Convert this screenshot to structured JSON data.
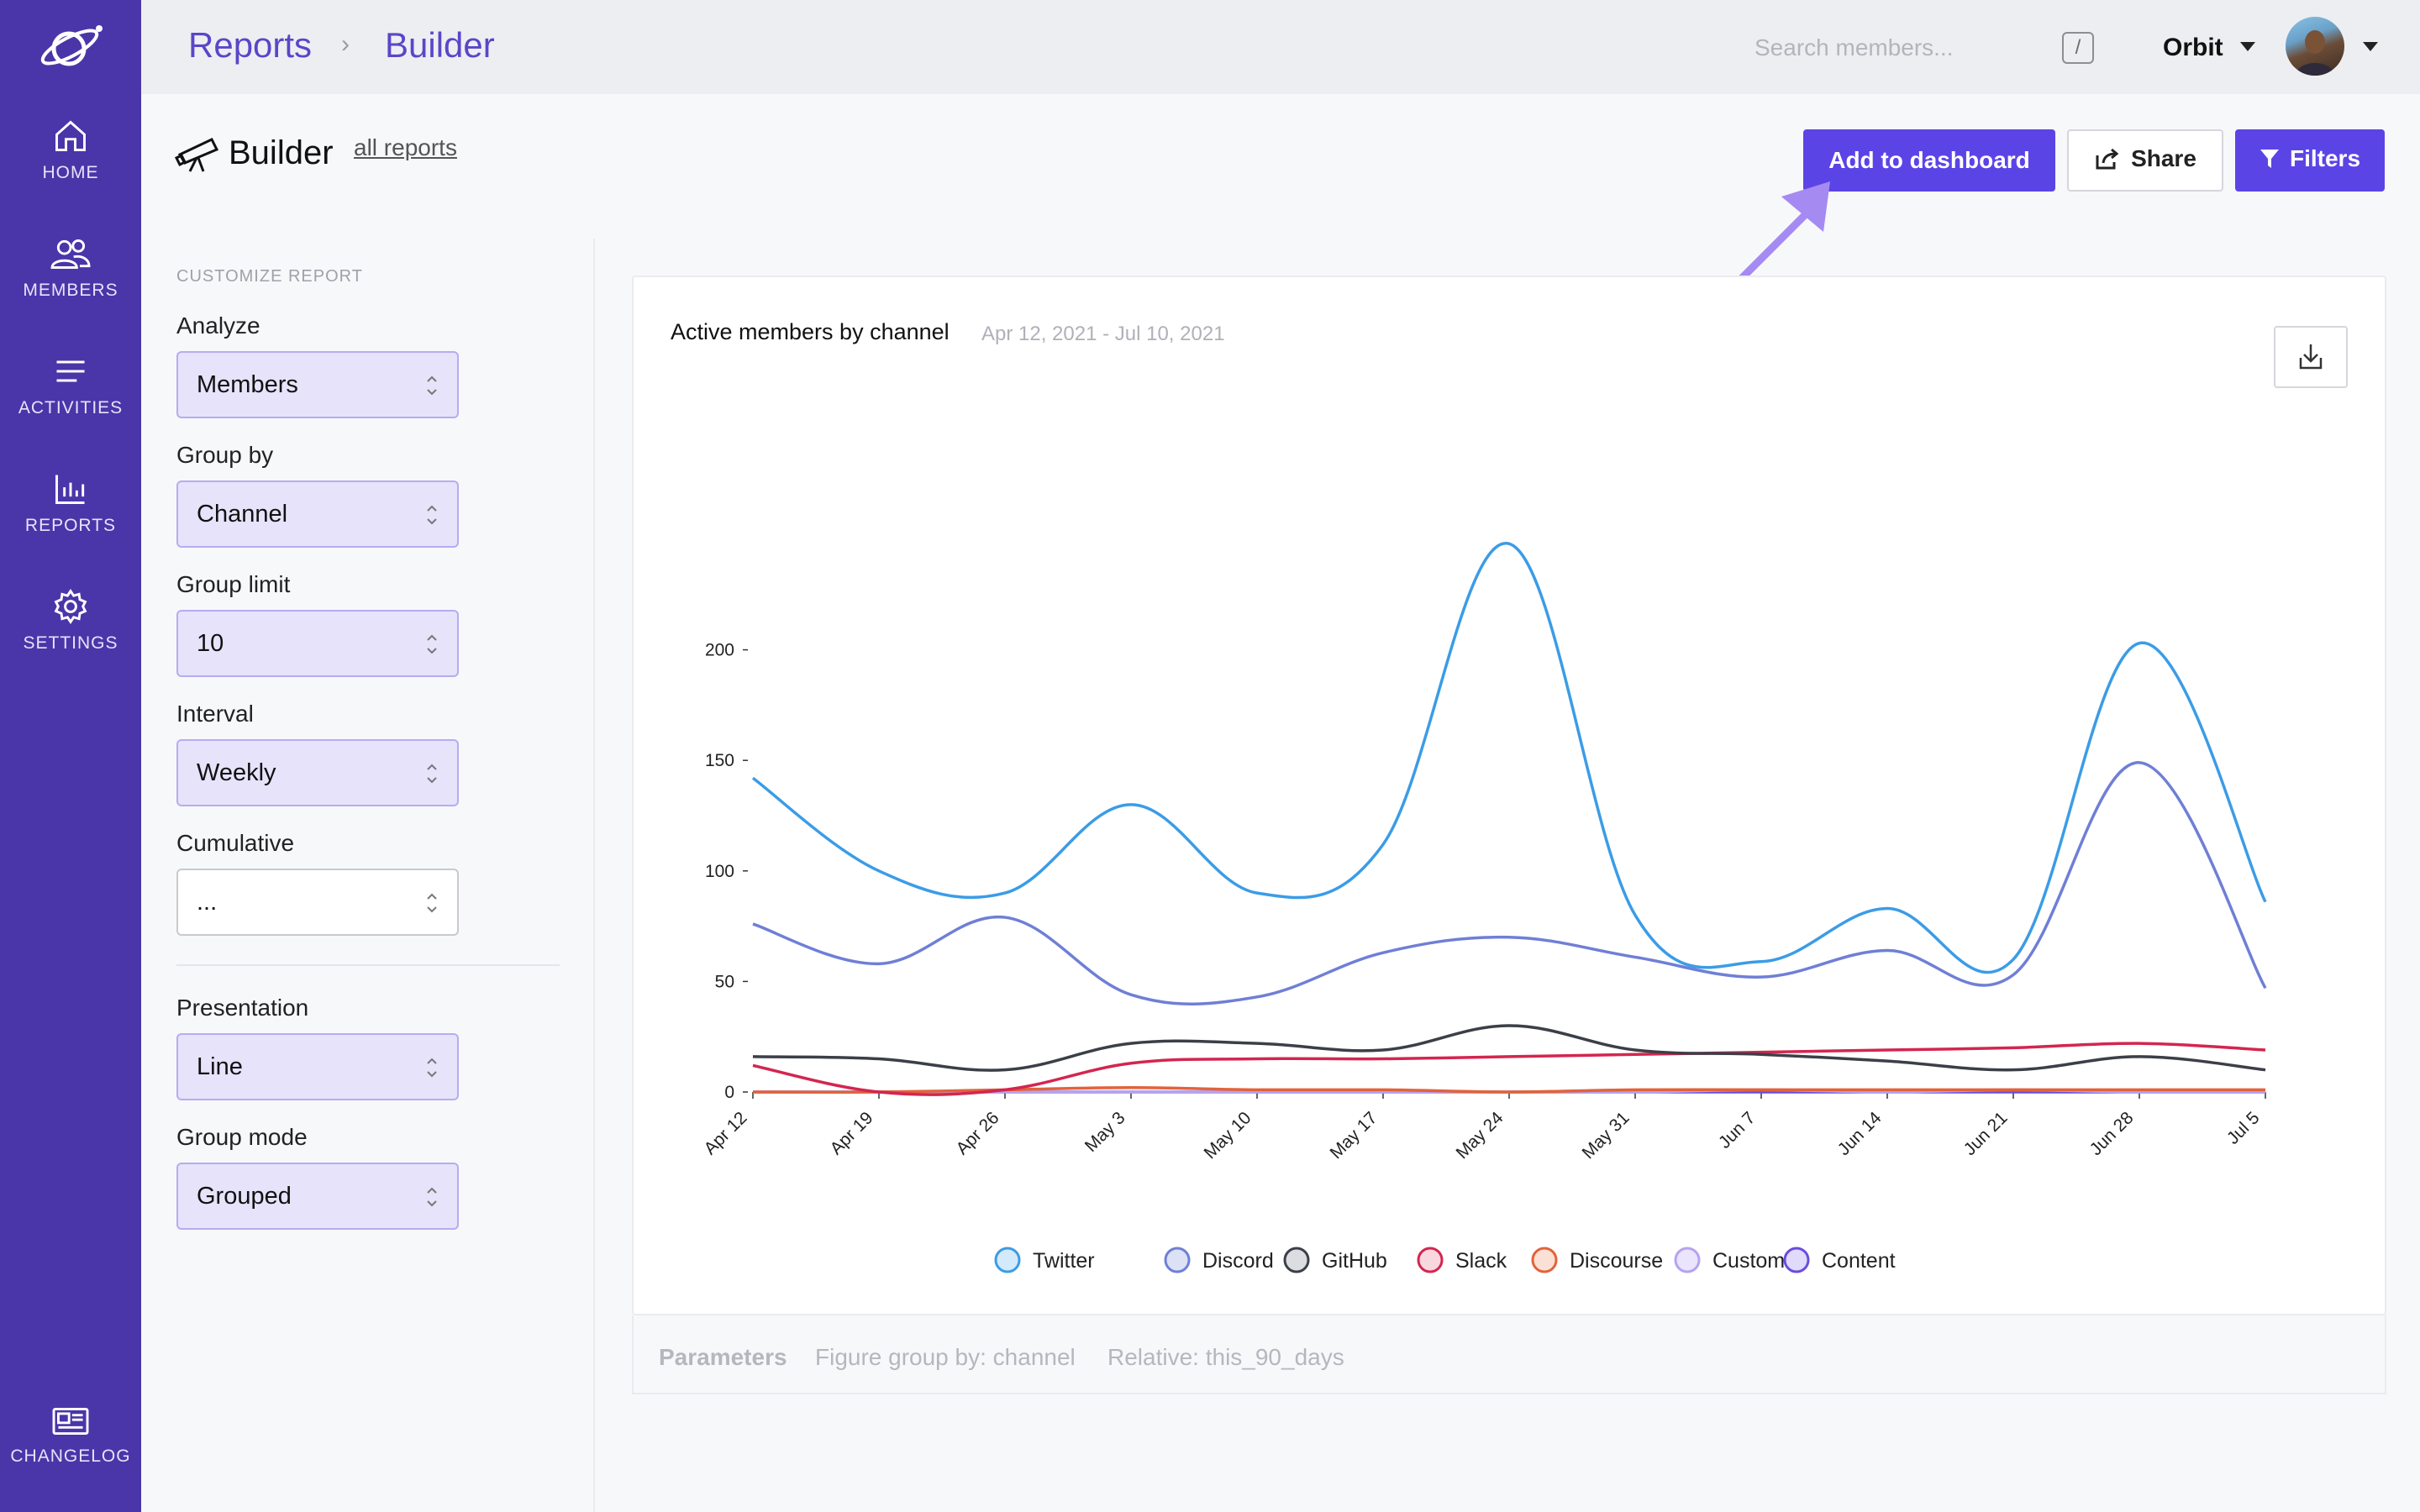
{
  "sidebar": {
    "items": [
      {
        "label": "HOME",
        "icon": "home-icon"
      },
      {
        "label": "MEMBERS",
        "icon": "members-icon"
      },
      {
        "label": "ACTIVITIES",
        "icon": "activities-icon"
      },
      {
        "label": "REPORTS",
        "icon": "reports-icon"
      },
      {
        "label": "SETTINGS",
        "icon": "settings-icon"
      }
    ],
    "changelog": {
      "label": "CHANGELOG",
      "icon": "newspaper-icon"
    }
  },
  "topbar": {
    "breadcrumb": [
      "Reports",
      "Builder"
    ],
    "breadcrumb_sep": "›",
    "search_placeholder": "Search members...",
    "search_shortcut": "/",
    "org_name": "Orbit"
  },
  "header": {
    "title": "Builder",
    "all_reports_link": "all reports",
    "buttons": {
      "add_to_dashboard": "Add to dashboard",
      "share": "Share",
      "filters": "Filters"
    }
  },
  "customize": {
    "heading": "CUSTOMIZE REPORT",
    "fields": [
      {
        "label": "Analyze",
        "value": "Members"
      },
      {
        "label": "Group by",
        "value": "Channel"
      },
      {
        "label": "Group limit",
        "value": "10"
      },
      {
        "label": "Interval",
        "value": "Weekly"
      },
      {
        "label": "Cumulative",
        "value": "..."
      }
    ],
    "presentation": [
      {
        "label": "Presentation",
        "value": "Line"
      },
      {
        "label": "Group mode",
        "value": "Grouped"
      }
    ]
  },
  "chart": {
    "title": "Active members by channel",
    "date_range": "Apr 12, 2021 - Jul 10, 2021"
  },
  "parameters": {
    "label": "Parameters",
    "group_by": "Figure group by: channel",
    "relative": "Relative: this_90_days"
  },
  "chart_data": {
    "type": "line",
    "title": "Active members by channel",
    "xlabel": "",
    "ylabel": "",
    "ylim": [
      0,
      250
    ],
    "yticks": [
      0,
      50,
      100,
      150,
      200
    ],
    "categories": [
      "Apr 12",
      "Apr 19",
      "Apr 26",
      "May 3",
      "May 10",
      "May 17",
      "May 24",
      "May 31",
      "Jun 7",
      "Jun 14",
      "Jun 21",
      "Jun 28",
      "Jul 5"
    ],
    "series": [
      {
        "name": "Twitter",
        "color": "#3b9ce6",
        "fill": "#d3eafb",
        "values": [
          142,
          100,
          90,
          130,
          90,
          112,
          248,
          80,
          59,
          83,
          60,
          203,
          86
        ]
      },
      {
        "name": "Discord",
        "color": "#6f7fd6",
        "fill": "#dde1f6",
        "values": [
          76,
          58,
          79,
          44,
          43,
          63,
          70,
          61,
          52,
          64,
          53,
          149,
          47
        ]
      },
      {
        "name": "GitHub",
        "color": "#3c3f48",
        "fill": "#dcdde0",
        "values": [
          16,
          15,
          10,
          22,
          22,
          19,
          30,
          19,
          17,
          14,
          10,
          16,
          10
        ]
      },
      {
        "name": "Slack",
        "color": "#d3264f",
        "fill": "#f8d7df",
        "values": [
          12,
          0,
          1,
          13,
          15,
          15,
          16,
          17,
          18,
          19,
          20,
          22,
          19
        ]
      },
      {
        "name": "Discourse",
        "color": "#e2633a",
        "fill": "#fbe0d6",
        "values": [
          0,
          0,
          1,
          2,
          1,
          1,
          0,
          1,
          1,
          1,
          1,
          1,
          1
        ]
      },
      {
        "name": "Custom",
        "color": "#b5a3ef",
        "fill": "#eae4fc",
        "values": [
          0,
          0,
          0,
          0,
          0,
          0,
          0,
          0,
          1,
          0,
          1,
          0,
          0
        ]
      },
      {
        "name": "Content",
        "color": "#6a4ce0",
        "fill": "#e0dafb",
        "values": [
          0,
          0,
          0,
          0,
          0,
          0,
          0,
          0,
          0,
          0,
          0,
          0,
          0
        ]
      }
    ],
    "legend_position": "bottom"
  }
}
